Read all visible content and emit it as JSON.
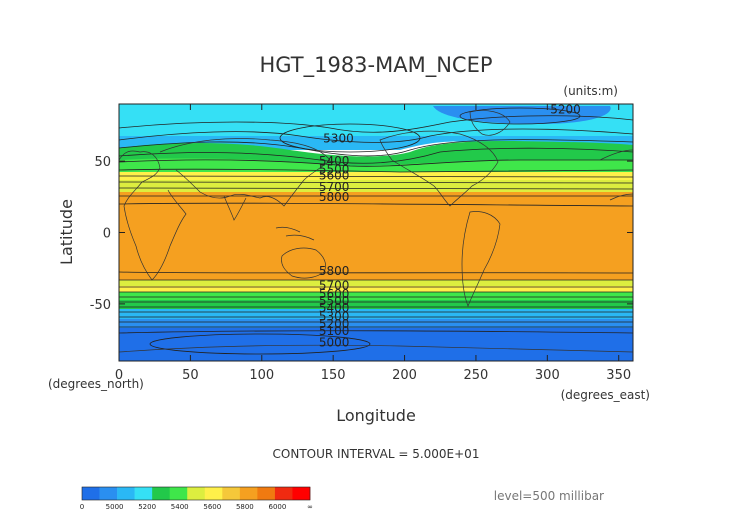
{
  "chart_data": {
    "type": "heatmap",
    "title": "HGT_1983-MAM_NCEP",
    "units_label": "(units:m)",
    "xlabel": "Longitude",
    "ylabel": "Latitude",
    "x_unit": "(degrees_east)",
    "y_unit": "(degrees_north)",
    "xlim": [
      0,
      360
    ],
    "ylim": [
      -90,
      90
    ],
    "x_ticks": [
      0,
      50,
      100,
      150,
      200,
      250,
      300,
      350
    ],
    "y_ticks": [
      -50,
      0,
      50
    ],
    "contour_note": "CONTOUR INTERVAL = 5.000E+01",
    "level_note": "level=500 millibar",
    "contour_labels": [
      {
        "text": "5200",
        "lon": 302,
        "lat": 86
      },
      {
        "text": "5300",
        "lon": 143,
        "lat": 66
      },
      {
        "text": "5400",
        "lon": 140,
        "lat": 50
      },
      {
        "text": "5500",
        "lon": 140,
        "lat": 44
      },
      {
        "text": "5600",
        "lon": 140,
        "lat": 40
      },
      {
        "text": "5700",
        "lon": 140,
        "lat": 32
      },
      {
        "text": "5800",
        "lon": 140,
        "lat": 25
      },
      {
        "text": "5800",
        "lon": 140,
        "lat": -27
      },
      {
        "text": "5700",
        "lon": 140,
        "lat": -37
      },
      {
        "text": "5600",
        "lon": 140,
        "lat": -43
      },
      {
        "text": "5500",
        "lon": 140,
        "lat": -48
      },
      {
        "text": "5400",
        "lon": 140,
        "lat": -53
      },
      {
        "text": "5300",
        "lon": 140,
        "lat": -59
      },
      {
        "text": "5200",
        "lon": 140,
        "lat": -64
      },
      {
        "text": "5100",
        "lon": 140,
        "lat": -69
      },
      {
        "text": "5000",
        "lon": 140,
        "lat": -77
      }
    ],
    "colorbar": {
      "labels": [
        "0",
        "5000",
        "5200",
        "5400",
        "5600",
        "5800",
        "6000",
        "∞"
      ],
      "colors": [
        "#1f6fe8",
        "#2a8ff0",
        "#2ab8f5",
        "#35e0f5",
        "#22c94a",
        "#3fe64a",
        "#dcee3f",
        "#fff04a",
        "#f5c83a",
        "#f5a020",
        "#f07a10",
        "#f02a10",
        "#ff0000"
      ]
    }
  }
}
